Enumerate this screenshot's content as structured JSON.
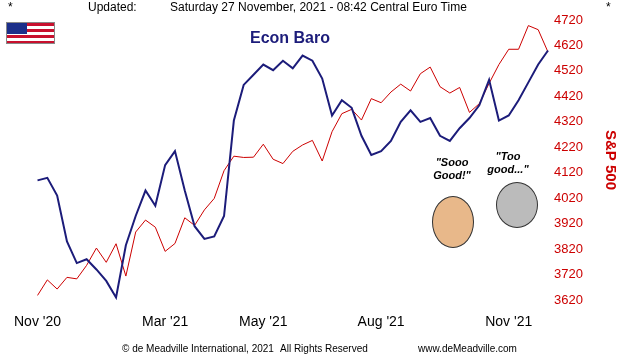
{
  "header": {
    "left_mark": "*",
    "label": "Updated:",
    "timestamp": "Saturday 27 November, 2021 - 08:42 Central Euro Time",
    "right_mark": "*"
  },
  "footer": {
    "copyright": "© de Meadville International, 2021",
    "rights": "All Rights Reserved",
    "website": "www.deMeadville.com"
  },
  "chart_data": {
    "type": "line",
    "title": "Econ Baro",
    "y_label": "S&P 500",
    "annotations": [
      "\"Sooo Good!\"",
      "\"Too good...\""
    ],
    "categories": [
      "Nov '20",
      null,
      null,
      null,
      null,
      null,
      null,
      null,
      null,
      null,
      null,
      null,
      null,
      "Mar '21",
      null,
      null,
      null,
      null,
      null,
      null,
      null,
      null,
      null,
      "May '21",
      null,
      null,
      null,
      null,
      null,
      null,
      null,
      null,
      null,
      null,
      null,
      "Aug '21",
      null,
      null,
      null,
      null,
      null,
      null,
      null,
      null,
      null,
      null,
      null,
      null,
      "Nov '21",
      null,
      null,
      null,
      null
    ],
    "series": [
      {
        "name": "Econ Baro",
        "color": "#1c1c7a",
        "values": [
          4090,
          4100,
          4030,
          3850,
          3765,
          3780,
          3740,
          3695,
          3630,
          3835,
          3950,
          4050,
          3990,
          4150,
          4205,
          4050,
          3910,
          3860,
          3870,
          3950,
          4325,
          4465,
          4505,
          4545,
          4523,
          4560,
          4530,
          4580,
          4560,
          4490,
          4345,
          4405,
          4375,
          4265,
          4190,
          4205,
          4245,
          4320,
          4365,
          4320,
          4335,
          4265,
          4245,
          4295,
          4335,
          4385,
          4485,
          4325,
          4345,
          4405,
          4475,
          4545,
          4600
        ]
      },
      {
        "name": "S&P 500",
        "color": "#cc0000",
        "values": [
          3638,
          3699,
          3663,
          3709,
          3703,
          3756,
          3824,
          3768,
          3841,
          3714,
          3887,
          3934,
          3906,
          3811,
          3842,
          3943,
          3913,
          3974,
          4019,
          4128,
          4185,
          4180,
          4181,
          4232,
          4173,
          4156,
          4204,
          4229,
          4247,
          4166,
          4281,
          4352,
          4369,
          4327,
          4411,
          4395,
          4437,
          4468,
          4441,
          4509,
          4535,
          4458,
          4433,
          4455,
          4357,
          4391,
          4471,
          4545,
          4605,
          4605,
          4698,
          4682,
          4594
        ]
      }
    ],
    "ylim": [
      3620,
      4720
    ],
    "yticks": [
      3620,
      3720,
      3820,
      3920,
      4020,
      4120,
      4220,
      4320,
      4420,
      4520,
      4620,
      4720
    ],
    "grid": false
  }
}
